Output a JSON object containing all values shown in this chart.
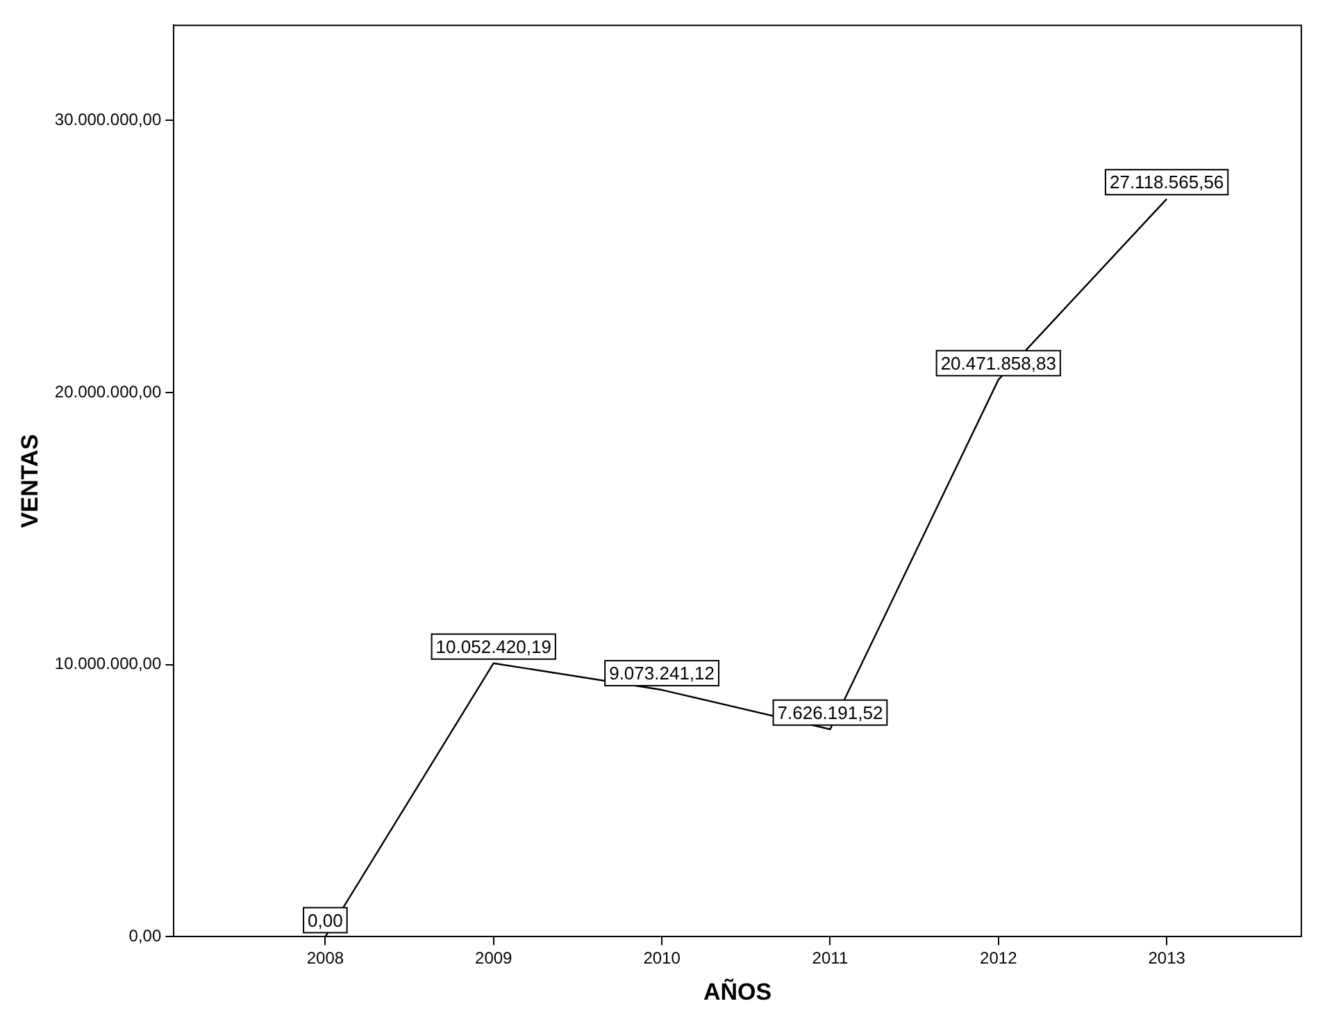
{
  "chart_data": {
    "type": "line",
    "xlabel": "AÑOS",
    "ylabel": "VENTAS",
    "x": [
      2008,
      2009,
      2010,
      2011,
      2012,
      2013
    ],
    "series": [
      {
        "color": "#000000",
        "values": [
          0,
          10052420.19,
          9073241.12,
          7626191.52,
          20471858.83,
          27118565.56
        ],
        "value_labels": [
          "0,00",
          "10.052.420,19",
          "9.073.241,12",
          "7.626.191,52",
          "20.471.858,83",
          "27.118.565,56"
        ]
      }
    ],
    "xlim": [
      2007.1,
      2013.8
    ],
    "xticks": [
      2008,
      2009,
      2010,
      2011,
      2012,
      2013
    ],
    "ylim": [
      0,
      33500000
    ],
    "yticks": [
      {
        "value": 0,
        "label": "0,00"
      },
      {
        "value": 10000000,
        "label": "10.000.000,00"
      },
      {
        "value": 20000000,
        "label": "20.000.000,00"
      },
      {
        "value": 30000000,
        "label": "30.000.000,00"
      }
    ],
    "grid": false,
    "legend": false,
    "marker": "none",
    "line_style": "solid"
  }
}
